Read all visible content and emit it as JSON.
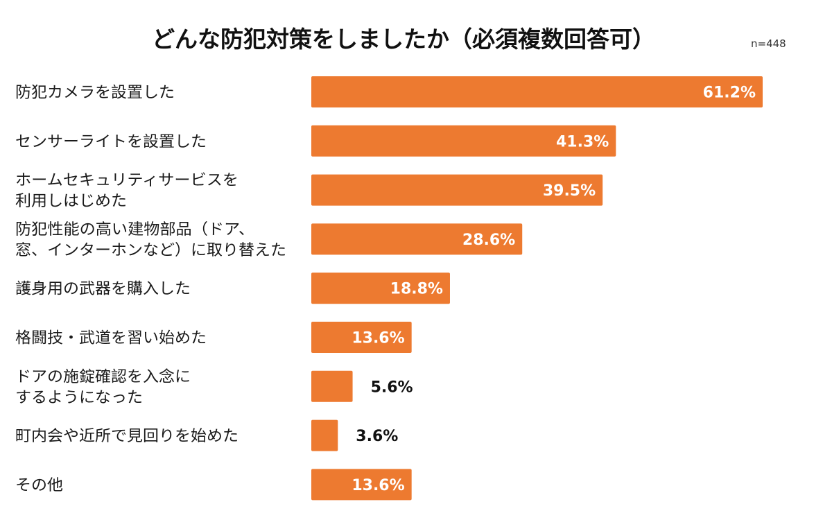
{
  "chart_data": {
    "type": "bar",
    "orientation": "horizontal",
    "title": "どんな防犯対策をしましたか（必須複数回答可）",
    "note": "n=448",
    "unit": "%",
    "bar_color": "#ED7A30",
    "categories": [
      [
        "防犯カメラを設置した"
      ],
      [
        "センサーライトを設置した"
      ],
      [
        "ホームセキュリティサービスを",
        "利用しはじめた"
      ],
      [
        "防犯性能の高い建物部品（ドア、",
        "窓、インターホンなど）に取り替えた"
      ],
      [
        "護身用の武器を購入した"
      ],
      [
        "格闘技・武道を習い始めた"
      ],
      [
        "ドアの施錠確認を入念に",
        "するようになった"
      ],
      [
        "町内会や近所で見回りを始めた"
      ],
      [
        "その他"
      ]
    ],
    "values": [
      61.2,
      41.3,
      39.5,
      28.6,
      18.8,
      13.6,
      5.6,
      3.6,
      13.6
    ],
    "value_labels": [
      "61.2%",
      "41.3%",
      "39.5%",
      "28.6%",
      "18.8%",
      "13.6%",
      "5.6%",
      "3.6%",
      "13.6%"
    ],
    "xlim": [
      0,
      61.2
    ],
    "grid": false,
    "legend": "none"
  }
}
